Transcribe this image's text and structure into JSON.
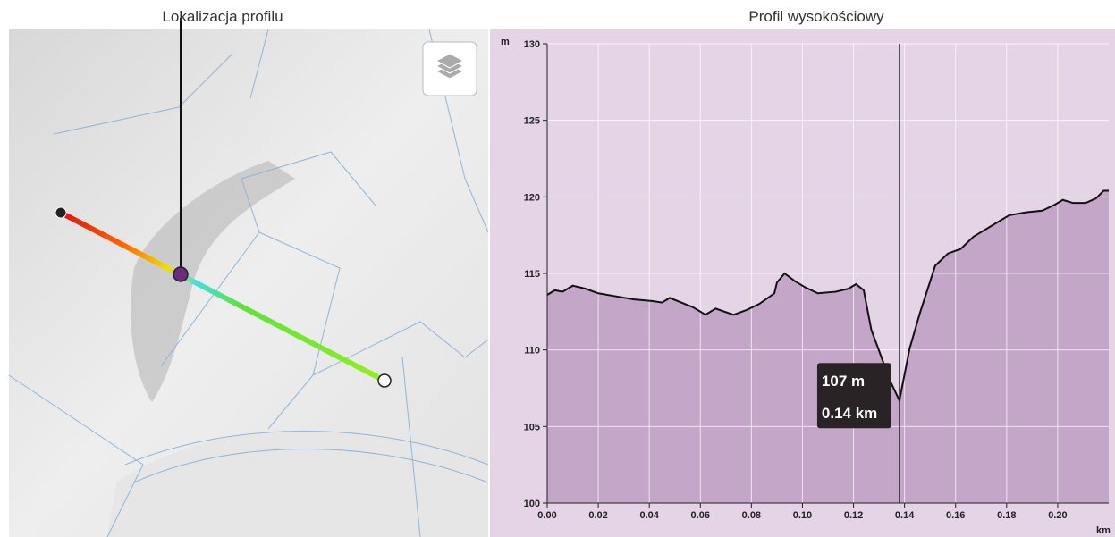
{
  "map": {
    "title": "Lokalizacja profilu"
  },
  "chart_data": {
    "type": "area",
    "title": "Profil wysokościowy",
    "y_unit": "m",
    "x_unit": "km",
    "color": "#c4a7c8",
    "line_color": "#111111",
    "x": [
      0,
      0.003,
      0.006,
      0.01,
      0.015,
      0.02,
      0.027,
      0.034,
      0.041,
      0.045,
      0.048,
      0.054,
      0.057,
      0.062,
      0.066,
      0.073,
      0.078,
      0.083,
      0.089,
      0.09,
      0.093,
      0.097,
      0.101,
      0.106,
      0.113,
      0.118,
      0.121,
      0.124,
      0.127,
      0.131,
      0.134,
      0.138,
      0.142,
      0.146,
      0.152,
      0.157,
      0.162,
      0.167,
      0.174,
      0.181,
      0.188,
      0.194,
      0.199,
      0.202,
      0.206,
      0.211,
      0.215,
      0.218,
      0.22
    ],
    "values": [
      113.6,
      113.9,
      113.8,
      114.2,
      114.0,
      113.7,
      113.5,
      113.3,
      113.2,
      113.1,
      113.4,
      113.0,
      112.8,
      112.3,
      112.7,
      112.3,
      112.6,
      113.0,
      113.7,
      114.4,
      115.0,
      114.5,
      114.1,
      113.7,
      113.8,
      114.0,
      114.3,
      113.9,
      111.3,
      109.5,
      108.1,
      106.7,
      110.1,
      112.4,
      115.5,
      116.3,
      116.6,
      117.4,
      118.1,
      118.8,
      119.0,
      119.1,
      119.5,
      119.8,
      119.6,
      119.6,
      119.9,
      120.4,
      120.4
    ],
    "xlim": [
      0,
      0.22
    ],
    "ylim": [
      100,
      130
    ],
    "xticks": [
      {
        "value": 0,
        "label": "0.00"
      },
      0.02,
      0.04,
      0.06,
      0.08,
      {
        "value": 0.1,
        "label": "0.10"
      },
      0.12,
      0.14,
      0.16,
      0.18,
      {
        "value": 0.2,
        "label": "0.20"
      }
    ],
    "yticks": [
      100,
      105,
      110,
      115,
      120,
      125,
      130
    ],
    "grid": true,
    "tooltip": {
      "x": 0.138,
      "y": 106.7,
      "value_label": "107 m",
      "x_label": "0.14 km"
    }
  }
}
